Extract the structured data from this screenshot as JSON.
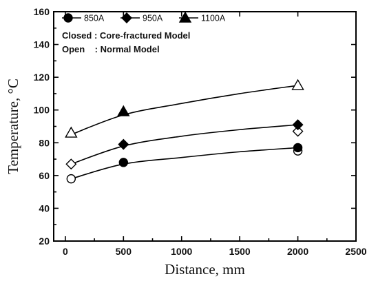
{
  "chart_data": {
    "type": "scatter",
    "xlabel": "Distance, mm",
    "ylabel": "Temperature, °C",
    "xlim": [
      -100,
      2500
    ],
    "ylim": [
      20,
      160
    ],
    "x_ticks": [
      0,
      500,
      1000,
      1500,
      2000,
      2500
    ],
    "y_ticks": [
      20,
      40,
      60,
      80,
      100,
      120,
      140,
      160
    ],
    "grid": false,
    "legend_position": "top-left",
    "notes": [
      "Closed : Core-fractured Model",
      "Open    : Normal Model"
    ],
    "series": [
      {
        "name": "850A",
        "marker": "circle",
        "closed": [
          {
            "x": 500,
            "y": 68
          },
          {
            "x": 2000,
            "y": 77
          }
        ],
        "open": [
          {
            "x": 50,
            "y": 58
          },
          {
            "x": 2000,
            "y": 75
          }
        ],
        "fit": [
          {
            "x": 50,
            "y": 58
          },
          {
            "x": 500,
            "y": 67
          },
          {
            "x": 1000,
            "y": 71
          },
          {
            "x": 1500,
            "y": 74.5
          },
          {
            "x": 2000,
            "y": 77
          }
        ]
      },
      {
        "name": "950A",
        "marker": "diamond",
        "closed": [
          {
            "x": 500,
            "y": 79
          },
          {
            "x": 2000,
            "y": 91
          }
        ],
        "open": [
          {
            "x": 50,
            "y": 67
          },
          {
            "x": 2000,
            "y": 87
          }
        ],
        "fit": [
          {
            "x": 50,
            "y": 67
          },
          {
            "x": 500,
            "y": 78
          },
          {
            "x": 1000,
            "y": 84
          },
          {
            "x": 1500,
            "y": 88
          },
          {
            "x": 2000,
            "y": 91
          }
        ]
      },
      {
        "name": "1100A",
        "marker": "triangle",
        "closed": [
          {
            "x": 500,
            "y": 99
          }
        ],
        "open": [
          {
            "x": 50,
            "y": 86
          },
          {
            "x": 2000,
            "y": 115
          }
        ],
        "fit": [
          {
            "x": 50,
            "y": 85
          },
          {
            "x": 500,
            "y": 97
          },
          {
            "x": 1000,
            "y": 104
          },
          {
            "x": 1500,
            "y": 110
          },
          {
            "x": 2000,
            "y": 115
          }
        ]
      }
    ]
  }
}
